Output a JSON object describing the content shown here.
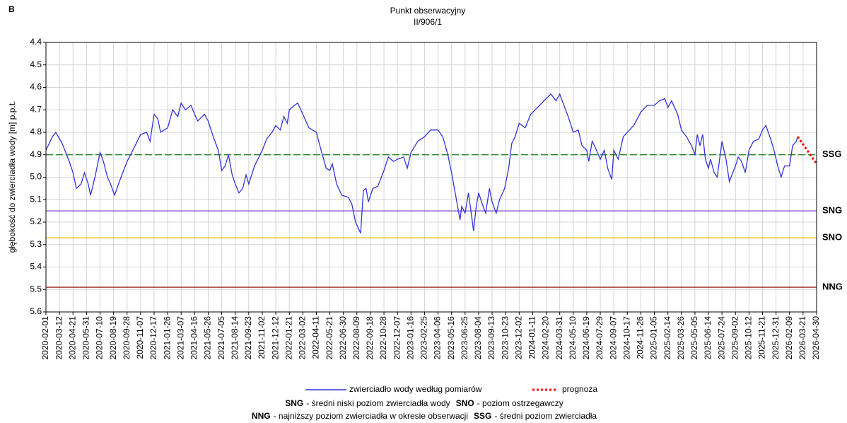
{
  "chart_data": {
    "type": "line",
    "panel_label": "B",
    "title": "Punkt obserwacyjny",
    "subtitle": "II/906/1",
    "y_label": "głębokość do zwierciadła wody [m] p.p.t.",
    "ylim": [
      4.4,
      5.6
    ],
    "y_inverted": true,
    "yticks": [
      4.4,
      4.5,
      4.6,
      4.7,
      4.8,
      4.9,
      {
        "value": 5,
        "label": "5.0"
      },
      5.1,
      5.2,
      5.3,
      5.4,
      5.5,
      5.6
    ],
    "xlim": [
      "2020-02-01",
      "2026-04-30"
    ],
    "xticks": [
      "2020-02-01",
      "2020-03-12",
      "2020-04-21",
      "2020-05-31",
      "2020-07-10",
      "2020-08-19",
      "2020-09-28",
      "2020-11-07",
      "2020-12-17",
      "2021-01-26",
      "2021-03-07",
      "2021-04-16",
      "2021-05-26",
      "2021-07-05",
      "2021-08-14",
      "2021-09-23",
      "2021-11-02",
      "2021-12-12",
      "2022-01-21",
      "2022-03-02",
      "2022-04-11",
      "2022-05-21",
      "2022-06-30",
      "2022-08-09",
      "2022-09-18",
      "2022-10-28",
      "2022-12-07",
      "2023-01-16",
      "2023-02-25",
      "2023-04-06",
      "2023-05-16",
      "2023-06-25",
      "2023-08-04",
      "2023-09-13",
      "2023-10-23",
      "2023-12-02",
      "2024-01-11",
      "2024-02-20",
      "2024-03-31",
      "2024-05-10",
      "2024-06-19",
      "2024-07-29",
      "2024-09-07",
      "2024-10-17",
      "2024-11-26",
      "2025-01-05",
      "2025-02-14",
      "2025-03-26",
      "2025-05-05",
      "2025-06-14",
      "2025-07-24",
      "2025-09-02",
      "2025-10-12",
      "2025-11-21",
      "2025-12-31",
      "2026-02-09",
      "2026-03-21",
      "2026-04-30"
    ],
    "grid": true,
    "series": [
      {
        "name": "zwierciadło wody według pomiarów",
        "color": "#3333dd",
        "dash": false,
        "x": [
          "2020-02-01",
          "2020-02-20",
          "2020-03-01",
          "2020-03-20",
          "2020-04-10",
          "2020-04-21",
          "2020-05-01",
          "2020-05-15",
          "2020-05-25",
          "2020-06-05",
          "2020-06-12",
          "2020-06-25",
          "2020-07-10",
          "2020-07-20",
          "2020-08-01",
          "2020-08-10",
          "2020-08-22",
          "2020-09-10",
          "2020-09-28",
          "2020-10-15",
          "2020-11-07",
          "2020-11-25",
          "2020-12-05",
          "2020-12-17",
          "2020-12-28",
          "2021-01-05",
          "2021-01-26",
          "2021-02-10",
          "2021-02-25",
          "2021-03-07",
          "2021-03-20",
          "2021-04-05",
          "2021-04-16",
          "2021-04-25",
          "2021-05-15",
          "2021-05-26",
          "2021-06-10",
          "2021-06-25",
          "2021-07-05",
          "2021-07-15",
          "2021-07-25",
          "2021-08-05",
          "2021-08-14",
          "2021-08-25",
          "2021-09-05",
          "2021-09-15",
          "2021-09-23",
          "2021-10-10",
          "2021-11-02",
          "2021-11-15",
          "2021-12-01",
          "2021-12-12",
          "2021-12-25",
          "2022-01-05",
          "2022-01-15",
          "2022-01-21",
          "2022-02-05",
          "2022-02-15",
          "2022-03-02",
          "2022-03-20",
          "2022-04-11",
          "2022-04-25",
          "2022-05-10",
          "2022-05-21",
          "2022-05-28",
          "2022-06-10",
          "2022-06-25",
          "2022-07-15",
          "2022-07-25",
          "2022-08-05",
          "2022-08-20",
          "2022-08-28",
          "2022-09-05",
          "2022-09-12",
          "2022-09-25",
          "2022-10-10",
          "2022-10-28",
          "2022-11-10",
          "2022-11-25",
          "2022-12-07",
          "2022-12-25",
          "2023-01-05",
          "2023-01-16",
          "2023-02-05",
          "2023-02-25",
          "2023-03-15",
          "2023-04-06",
          "2023-04-20",
          "2023-05-05",
          "2023-05-16",
          "2023-05-28",
          "2023-06-10",
          "2023-06-15",
          "2023-06-25",
          "2023-07-05",
          "2023-07-15",
          "2023-07-20",
          "2023-07-28",
          "2023-08-04",
          "2023-08-15",
          "2023-08-25",
          "2023-09-05",
          "2023-09-13",
          "2023-09-25",
          "2023-10-05",
          "2023-10-20",
          "2023-11-01",
          "2023-11-10",
          "2023-11-20",
          "2023-12-02",
          "2023-12-20",
          "2024-01-05",
          "2024-01-25",
          "2024-02-20",
          "2024-03-05",
          "2024-03-20",
          "2024-03-31",
          "2024-04-10",
          "2024-04-25",
          "2024-05-10",
          "2024-05-25",
          "2024-06-05",
          "2024-06-19",
          "2024-06-25",
          "2024-07-05",
          "2024-07-15",
          "2024-07-29",
          "2024-08-10",
          "2024-08-20",
          "2024-09-01",
          "2024-09-07",
          "2024-09-20",
          "2024-10-05",
          "2024-10-17",
          "2024-11-05",
          "2024-11-26",
          "2024-12-15",
          "2025-01-05",
          "2025-01-20",
          "2025-02-05",
          "2025-02-14",
          "2025-02-25",
          "2025-03-15",
          "2025-03-26",
          "2025-04-10",
          "2025-04-25",
          "2025-05-05",
          "2025-05-12",
          "2025-05-20",
          "2025-05-28",
          "2025-06-05",
          "2025-06-14",
          "2025-06-20",
          "2025-07-01",
          "2025-07-10",
          "2025-07-24",
          "2025-08-05",
          "2025-08-15",
          "2025-08-25",
          "2025-09-02",
          "2025-09-10",
          "2025-09-20",
          "2025-10-01",
          "2025-10-12",
          "2025-10-25",
          "2025-11-10",
          "2025-11-21",
          "2025-12-01",
          "2025-12-15",
          "2025-12-25",
          "2026-01-05",
          "2026-01-15",
          "2026-01-25",
          "2026-02-09",
          "2026-02-18",
          "2026-03-01",
          "2026-03-05"
        ],
        "values": [
          4.88,
          4.82,
          4.8,
          4.85,
          4.93,
          4.98,
          5.05,
          5.03,
          4.98,
          5.03,
          5.08,
          5.0,
          4.89,
          4.93,
          5.0,
          5.03,
          5.08,
          5.0,
          4.93,
          4.88,
          4.81,
          4.8,
          4.84,
          4.72,
          4.74,
          4.8,
          4.78,
          4.7,
          4.73,
          4.67,
          4.7,
          4.68,
          4.72,
          4.75,
          4.72,
          4.75,
          4.82,
          4.88,
          4.97,
          4.95,
          4.9,
          4.99,
          5.03,
          5.07,
          5.05,
          4.99,
          5.03,
          4.95,
          4.88,
          4.83,
          4.8,
          4.77,
          4.79,
          4.73,
          4.76,
          4.7,
          4.68,
          4.67,
          4.72,
          4.78,
          4.8,
          4.88,
          4.96,
          4.97,
          4.94,
          5.03,
          5.08,
          5.09,
          5.12,
          5.2,
          5.25,
          5.06,
          5.05,
          5.11,
          5.05,
          5.04,
          4.97,
          4.91,
          4.93,
          4.92,
          4.91,
          4.96,
          4.89,
          4.84,
          4.82,
          4.79,
          4.79,
          4.82,
          4.9,
          4.98,
          5.08,
          5.19,
          5.13,
          5.16,
          5.07,
          5.18,
          5.24,
          5.13,
          5.07,
          5.12,
          5.16,
          5.05,
          5.11,
          5.16,
          5.1,
          5.05,
          4.96,
          4.85,
          4.82,
          4.76,
          4.78,
          4.72,
          4.69,
          4.65,
          4.63,
          4.66,
          4.63,
          4.67,
          4.73,
          4.8,
          4.79,
          4.86,
          4.88,
          4.93,
          4.84,
          4.87,
          4.92,
          4.88,
          4.96,
          5.01,
          4.88,
          4.92,
          4.82,
          4.8,
          4.77,
          4.71,
          4.68,
          4.68,
          4.66,
          4.65,
          4.69,
          4.66,
          4.72,
          4.79,
          4.82,
          4.86,
          4.9,
          4.81,
          4.86,
          4.81,
          4.92,
          4.96,
          4.92,
          4.98,
          5.0,
          4.84,
          4.92,
          5.02,
          4.98,
          4.95,
          4.91,
          4.93,
          4.98,
          4.88,
          4.84,
          4.83,
          4.79,
          4.77,
          4.83,
          4.88,
          4.95,
          5.0,
          4.95,
          4.95,
          4.86,
          4.84,
          4.82
        ]
      },
      {
        "name": "prognoza",
        "color": "#ff0000",
        "dash": true,
        "x": [
          "2026-03-05",
          "2026-04-30"
        ],
        "values": [
          4.82,
          4.94
        ]
      }
    ],
    "reference_lines": [
      {
        "label": "SSG",
        "value": 4.9,
        "color": "#1a7a1a",
        "dash": true
      },
      {
        "label": "SNG",
        "value": 5.15,
        "color": "#7040c0",
        "dash": false
      },
      {
        "label": "SNO",
        "value": 5.27,
        "color": "#f0b400",
        "dash": false
      },
      {
        "label": "NNG",
        "value": 5.49,
        "color": "#a02020",
        "dash": false
      }
    ],
    "legend_notes": [
      {
        "abbr": "SNG",
        "text": "- średni niski poziom zwierciadła wody"
      },
      {
        "abbr": "SNO",
        "text": "- poziom ostrzegawczy"
      },
      {
        "abbr": "NNG",
        "text": "- najniższy poziom zwierciadła w okresie obserwacji"
      },
      {
        "abbr": "SSG",
        "text": "- średni poziom zwierciadła"
      }
    ]
  }
}
